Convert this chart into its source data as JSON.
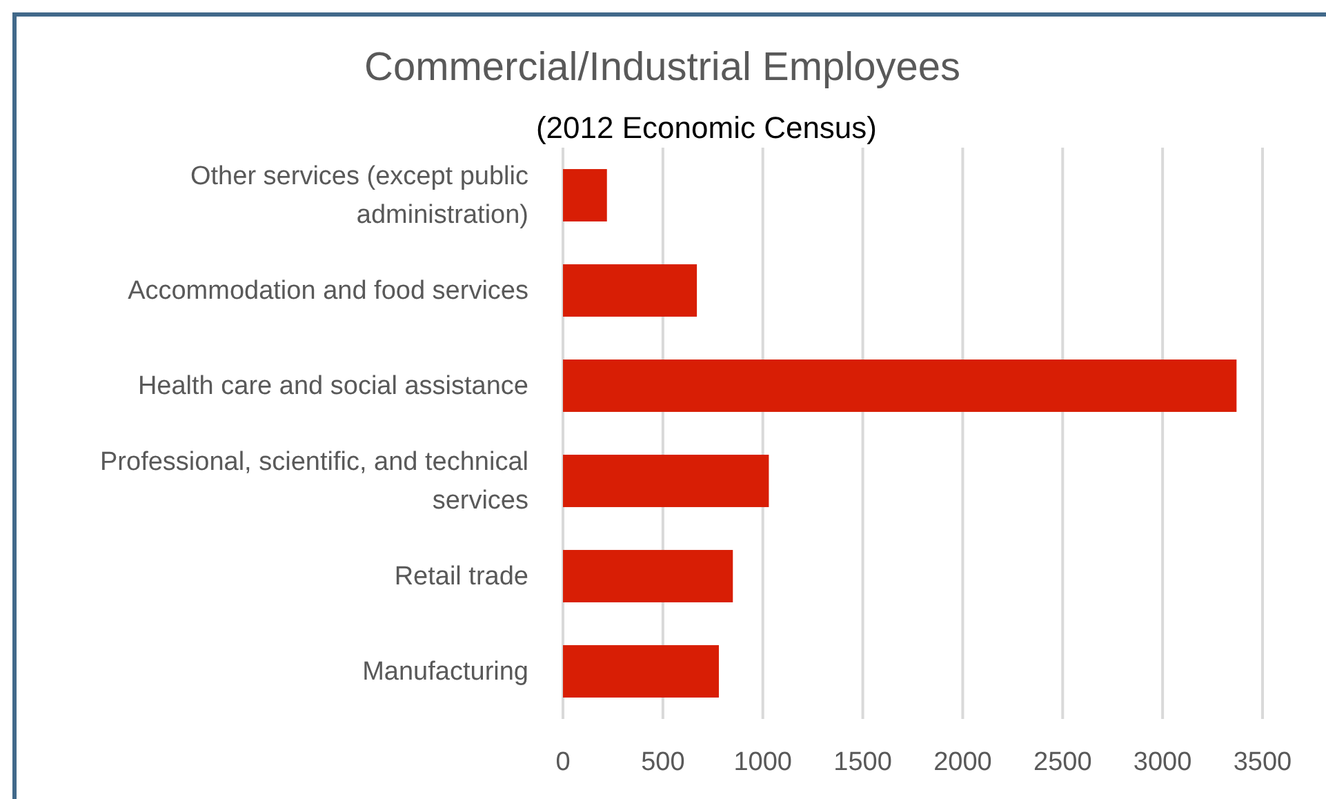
{
  "chart_data": {
    "type": "bar",
    "orientation": "horizontal",
    "title": "Commercial/Industrial Employees",
    "subtitle": "(2012 Economic Census)",
    "categories": [
      "Other services (except public administration)",
      "Accommodation and food services",
      "Health care and social assistance",
      "Professional, scientific, and technical services",
      "Retail trade",
      "Manufacturing"
    ],
    "values": [
      220,
      670,
      3370,
      1030,
      850,
      780
    ],
    "color": "#d81e05",
    "xlim": [
      0,
      3500
    ],
    "xticks": [
      0,
      500,
      1000,
      1500,
      2000,
      2500,
      3000,
      3500
    ],
    "grid": "x"
  }
}
